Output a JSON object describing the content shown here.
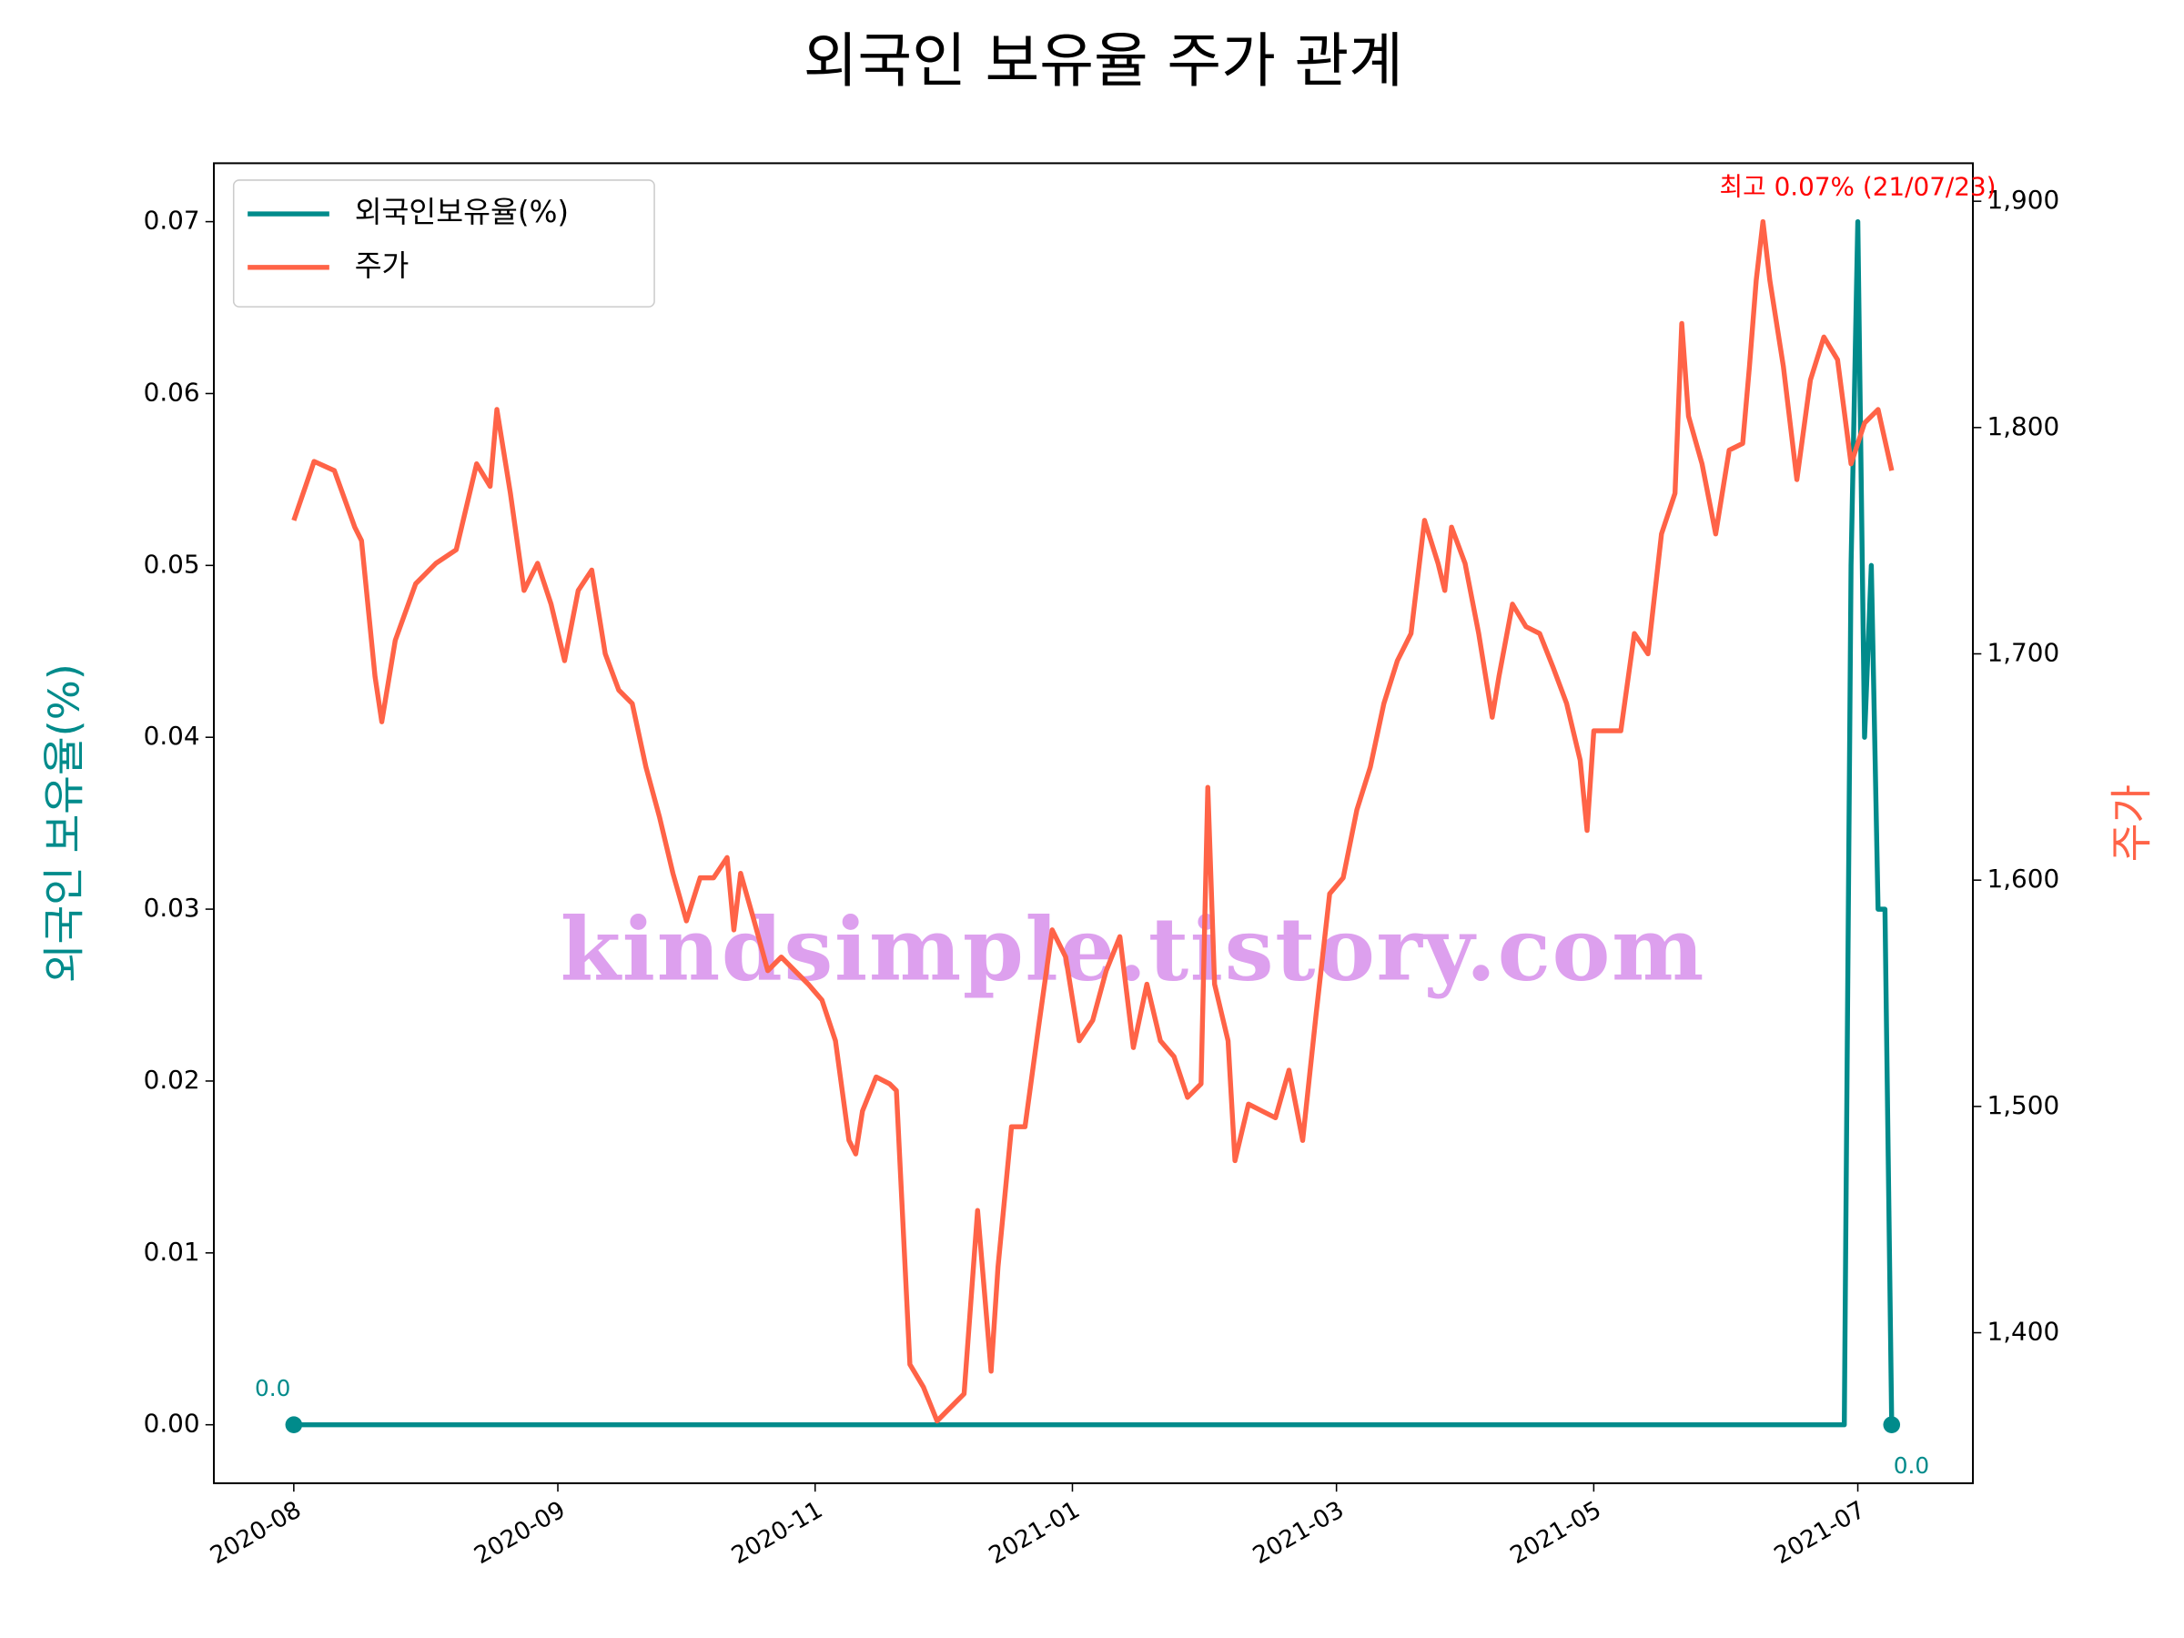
{
  "chart_data": {
    "type": "line",
    "title": "외국인 보유율 주가 관계",
    "ylabel": "외국인 보유율(%)",
    "y2label": "주가",
    "watermark": "kindsimple.tistory.com",
    "legend": "upper left",
    "xlim": [
      -11.8,
      248
    ],
    "xticks": [
      {
        "value": 0,
        "label": "2020-08"
      },
      {
        "value": 39,
        "label": "2020-09"
      },
      {
        "value": 77,
        "label": "2020-11"
      },
      {
        "value": 115,
        "label": "2021-01"
      },
      {
        "value": 154,
        "label": "2021-03"
      },
      {
        "value": 192,
        "label": "2021-05"
      },
      {
        "value": 231,
        "label": "2021-07"
      }
    ],
    "ylim": [
      -0.0034,
      0.0734
    ],
    "yticks": [
      {
        "value": 0,
        "label": "0.00"
      },
      0.01,
      0.02,
      0.03,
      0.04,
      0.05,
      0.06,
      0.07
    ],
    "y2lim": [
      1333.5,
      1916.8
    ],
    "y2ticks": [
      {
        "value": 1400,
        "label": "1,400"
      },
      {
        "value": 1500,
        "label": "1,500"
      },
      {
        "value": 1600,
        "label": "1,600"
      },
      {
        "value": 1700,
        "label": "1,700"
      },
      {
        "value": 1800,
        "label": "1,800"
      },
      {
        "value": 1900,
        "label": "1,900"
      }
    ],
    "series": [
      {
        "name": "외국인보유율(%)",
        "color": "#008b8b",
        "x": [
          0,
          229,
          230,
          231,
          232,
          233,
          234,
          235,
          236
        ],
        "values": [
          0,
          0,
          0.05,
          0.07,
          0.04,
          0.05,
          0.03,
          0.03,
          0
        ]
      },
      {
        "name": "주가",
        "color": "#ff6347",
        "axis": "y2",
        "x": [
          0,
          3,
          6,
          9,
          10,
          12,
          13,
          15,
          18,
          21,
          24,
          27,
          29,
          30,
          32,
          34,
          36,
          38,
          40,
          42,
          44,
          46,
          48,
          50,
          52,
          54,
          56,
          58,
          60,
          62,
          64,
          65,
          66,
          68,
          70,
          72,
          74,
          76,
          78,
          80,
          82,
          83,
          84,
          86,
          88,
          89,
          91,
          93,
          95,
          97,
          99,
          101,
          103,
          104,
          106,
          108,
          110,
          112,
          114,
          116,
          118,
          120,
          122,
          124,
          126,
          128,
          130,
          132,
          134,
          135,
          136,
          138,
          139,
          141,
          143,
          145,
          147,
          149,
          151,
          153,
          155,
          157,
          159,
          161,
          163,
          165,
          167,
          169,
          170,
          171,
          173,
          175,
          177,
          178,
          180,
          182,
          184,
          186,
          188,
          190,
          191,
          192,
          194,
          196,
          198,
          200,
          202,
          204,
          205,
          206,
          208,
          210,
          212,
          214,
          215,
          216,
          217,
          218,
          220,
          222,
          224,
          226,
          228,
          230,
          232,
          234,
          236
        ],
        "values": [
          1759,
          1785,
          1781,
          1756,
          1750,
          1690,
          1670,
          1706,
          1731,
          1740,
          1746,
          1784,
          1774,
          1808,
          1771,
          1728,
          1740,
          1722,
          1697,
          1728,
          1737,
          1700,
          1684,
          1678,
          1650,
          1628,
          1603,
          1582,
          1601,
          1601,
          1610,
          1578,
          1603,
          1582,
          1560,
          1566,
          1560,
          1554,
          1547,
          1529,
          1485,
          1479,
          1498,
          1513,
          1510,
          1507,
          1386,
          1376,
          1361,
          1367,
          1373,
          1454,
          1383,
          1429,
          1491,
          1491,
          1535,
          1578,
          1566,
          1529,
          1538,
          1560,
          1575,
          1526,
          1554,
          1529,
          1522,
          1504,
          1510,
          1641,
          1554,
          1529,
          1476,
          1501,
          1498,
          1495,
          1516,
          1485,
          1541,
          1594,
          1601,
          1631,
          1650,
          1678,
          1697,
          1709,
          1759,
          1740,
          1728,
          1756,
          1740,
          1709,
          1672,
          1690,
          1722,
          1712,
          1709,
          1694,
          1678,
          1653,
          1622,
          1666,
          1666,
          1666,
          1709,
          1700,
          1753,
          1771,
          1846,
          1805,
          1784,
          1753,
          1790,
          1793,
          1827,
          1865,
          1891,
          1865,
          1827,
          1777,
          1821,
          1840,
          1830,
          1784,
          1802,
          1808,
          1781
        ]
      }
    ],
    "annotations": [
      "0.0",
      "0.0",
      "최고 0.07% (21/07/23)"
    ]
  }
}
